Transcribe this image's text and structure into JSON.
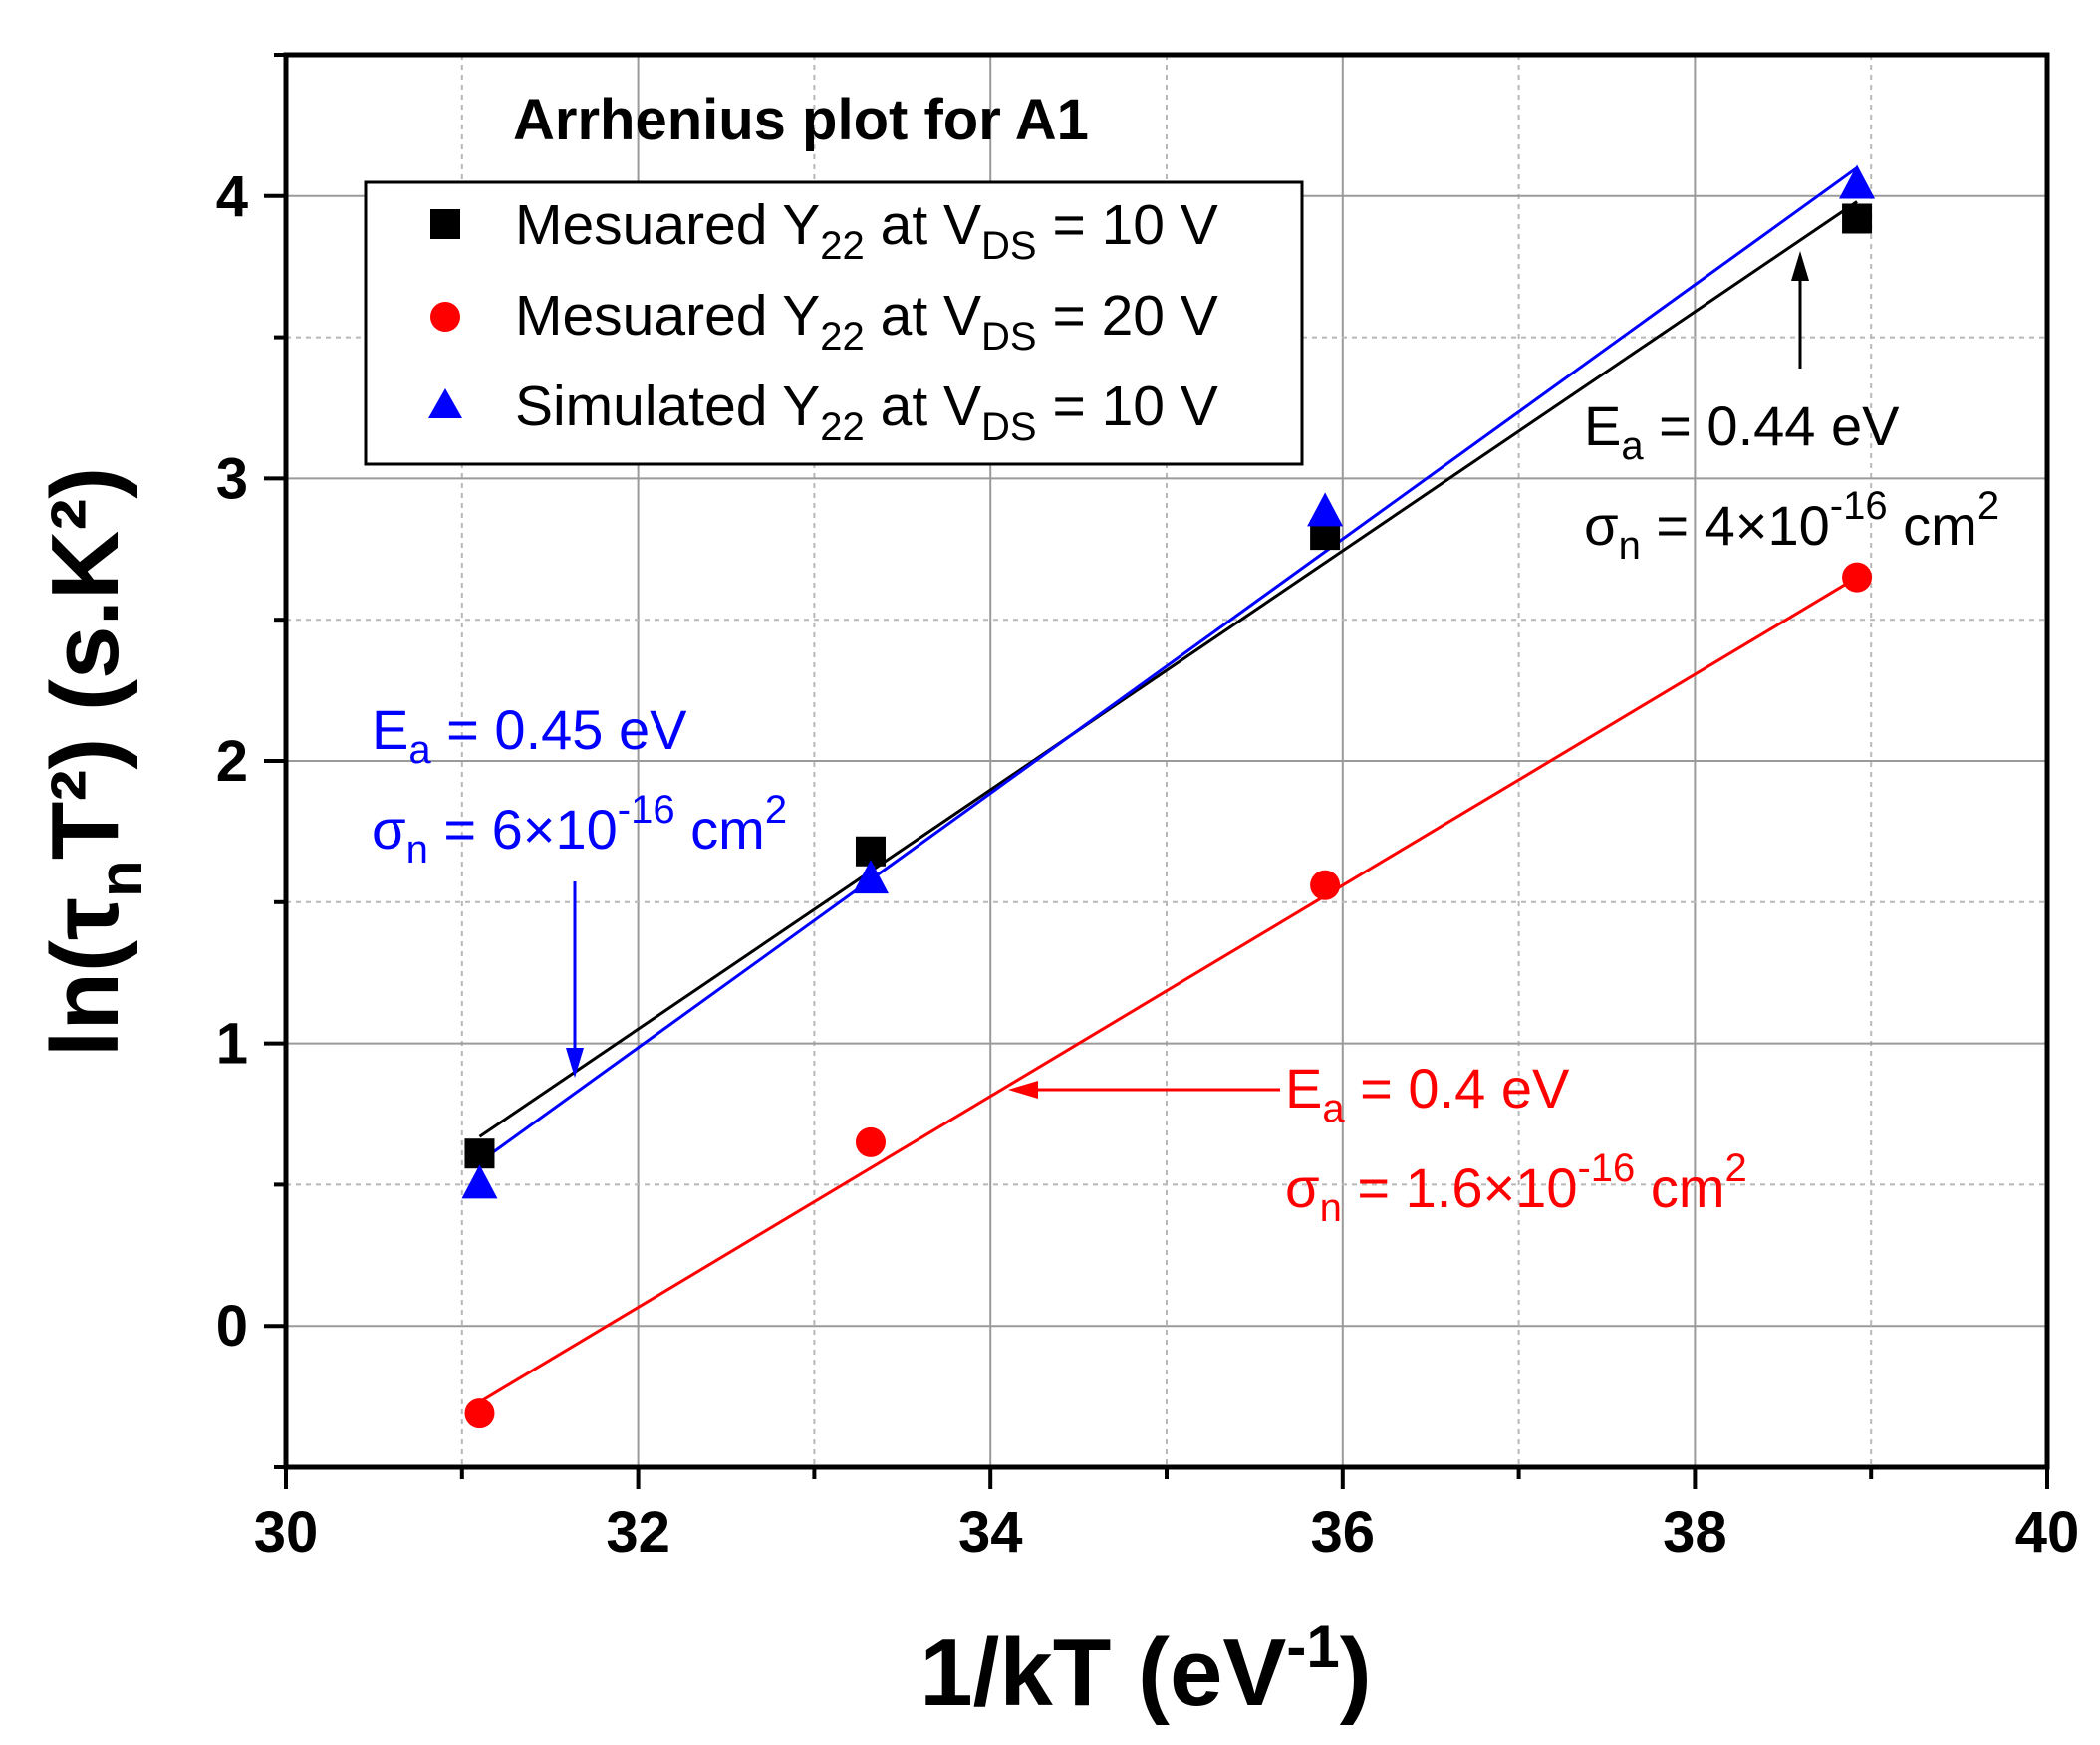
{
  "chart_data": {
    "type": "scatter",
    "title": "Arrhenius plot for A1",
    "xlabel": "1/kT (eV",
    "xlabel_sup": "-1",
    "xlabel_close": ")",
    "ylabel": "ln(τ",
    "ylabel_sub": "n",
    "ylabel_tail": "T²) (s.K²)",
    "xlim": [
      30,
      40
    ],
    "ylim": [
      -0.5,
      4.5
    ],
    "xticks": [
      30,
      32,
      34,
      36,
      38,
      40
    ],
    "yticks": [
      0,
      1,
      2,
      3,
      4
    ],
    "grid": true,
    "legend_position": "top-left",
    "series": [
      {
        "name": "Mesuared Y22 at VDS = 10 V",
        "legend_parts": [
          "Mesuared Y",
          "22",
          " at V",
          "DS",
          " = 10 V"
        ],
        "marker": "square",
        "color": "#000000",
        "x": [
          31.1,
          33.32,
          35.9,
          38.92
        ],
        "y": [
          0.61,
          1.68,
          2.8,
          3.92
        ],
        "fit": {
          "x": [
            31.1,
            38.92
          ],
          "y": [
            0.67,
            3.98
          ]
        }
      },
      {
        "name": "Mesuared Y22 at VDS = 20 V",
        "legend_parts": [
          "Mesuared Y",
          "22",
          " at V",
          "DS",
          " = 20 V"
        ],
        "marker": "circle",
        "color": "#ff0000",
        "x": [
          31.1,
          33.32,
          35.9,
          38.92
        ],
        "y": [
          -0.31,
          0.65,
          1.56,
          2.65
        ],
        "fit": {
          "x": [
            31.1,
            38.92
          ],
          "y": [
            -0.27,
            2.65
          ]
        }
      },
      {
        "name": "Simulated Y22 at VDS = 10 V",
        "legend_parts": [
          "Simulated Y",
          "22",
          " at V",
          "DS",
          " = 10 V"
        ],
        "marker": "triangle",
        "color": "#0000ff",
        "x": [
          31.1,
          33.32,
          35.9,
          38.92
        ],
        "y": [
          0.5,
          1.58,
          2.88,
          4.04
        ],
        "fit": {
          "x": [
            31.1,
            38.92
          ],
          "y": [
            0.58,
            4.1
          ]
        }
      }
    ],
    "annotations": [
      {
        "id": "black",
        "color": "#000000",
        "ea_prefix": "E",
        "ea_sub": "a",
        "ea_value": " = 0.44 eV",
        "sigma_prefix": "σ",
        "sigma_sub": "n",
        "sigma_value": " = 4×10",
        "sigma_exp": "-16",
        "sigma_unit": " cm",
        "sigma_unit_exp": "2"
      },
      {
        "id": "blue",
        "color": "#0000ff",
        "ea_prefix": "E",
        "ea_sub": "a",
        "ea_value": " = 0.45 eV",
        "sigma_prefix": "σ",
        "sigma_sub": "n",
        "sigma_value": " = 6×10",
        "sigma_exp": "-16",
        "sigma_unit": " cm",
        "sigma_unit_exp": "2"
      },
      {
        "id": "red",
        "color": "#ff0000",
        "ea_prefix": "E",
        "ea_sub": "a",
        "ea_value": " = 0.4 eV",
        "sigma_prefix": "σ",
        "sigma_sub": "n",
        "sigma_value": " = 1.6×10",
        "sigma_exp": "-16",
        "sigma_unit": " cm",
        "sigma_unit_exp": "2"
      }
    ]
  }
}
